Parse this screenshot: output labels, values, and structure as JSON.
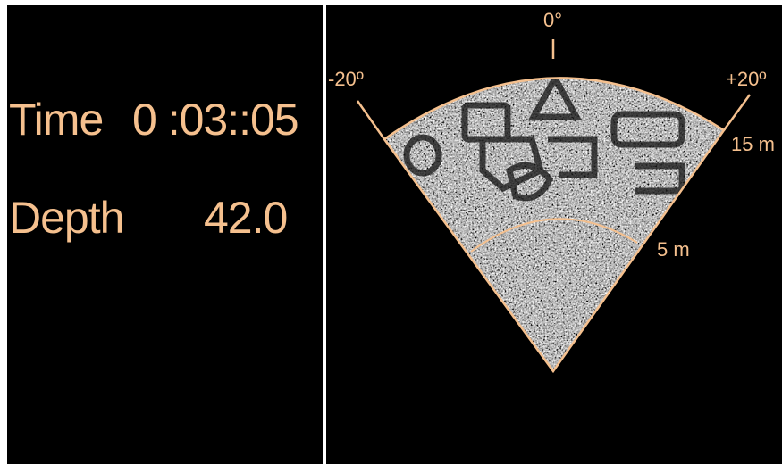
{
  "readouts": {
    "time_label": "Time",
    "time_value": "0 :03::05",
    "depth_label": "Depth",
    "depth_value": "42.0"
  },
  "sonar": {
    "angle_center_label": "0°",
    "angle_left_label": "-20º",
    "angle_right_label": "+20º",
    "range_outer_label": "15 m",
    "range_inner_label": "5 m"
  },
  "colors": {
    "overlay": "#f5c08e",
    "background": "#000000",
    "divider": "#ffffff"
  }
}
